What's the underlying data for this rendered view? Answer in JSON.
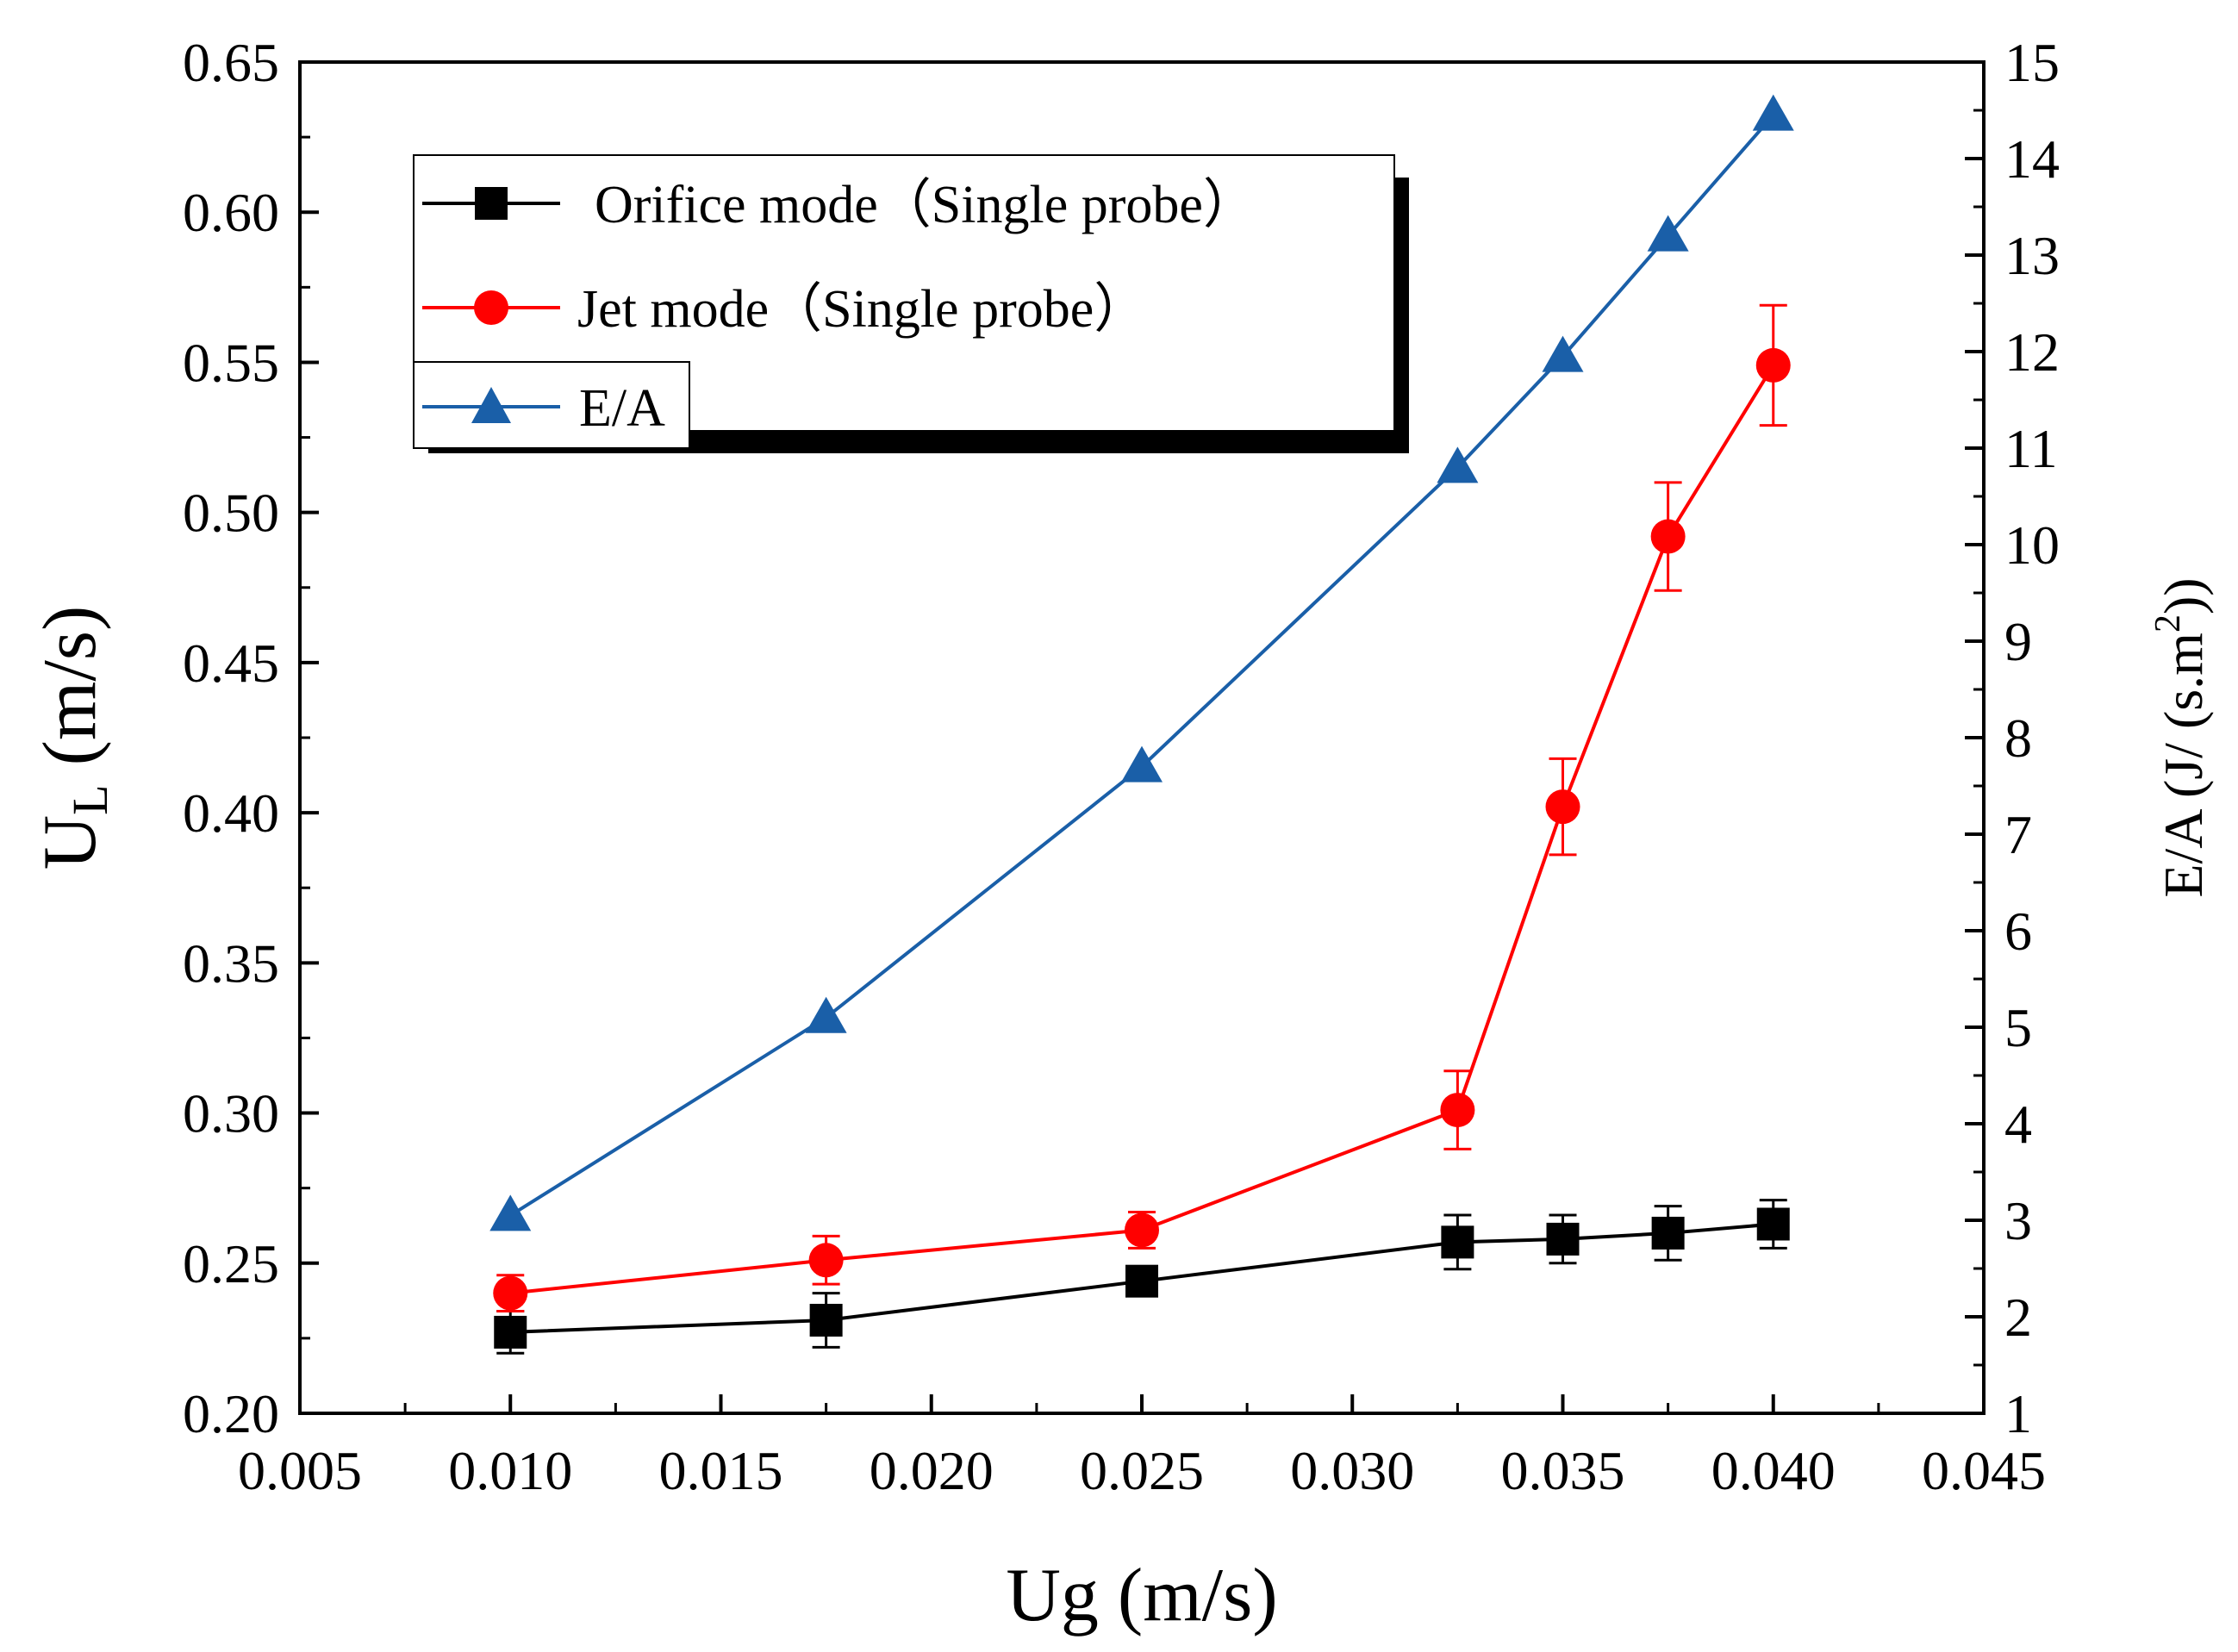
{
  "chart_data": {
    "type": "line",
    "x": [
      0.01,
      0.0175,
      0.025,
      0.0325,
      0.035,
      0.0375,
      0.04
    ],
    "xlim": [
      0.005,
      0.045
    ],
    "ylim": [
      0.2,
      0.65
    ],
    "y2lim": [
      1,
      15
    ],
    "x_ticks": [
      "0.005",
      "0.010",
      "0.015",
      "0.020",
      "0.025",
      "0.030",
      "0.035",
      "0.040",
      "0.045"
    ],
    "y_ticks": [
      "0.20",
      "0.25",
      "0.30",
      "0.35",
      "0.40",
      "0.45",
      "0.50",
      "0.55",
      "0.60",
      "0.65"
    ],
    "y2_ticks": [
      "1",
      "2",
      "3",
      "4",
      "5",
      "6",
      "7",
      "8",
      "9",
      "10",
      "11",
      "12",
      "13",
      "14",
      "15"
    ],
    "xlabel": "Ug (m/s)",
    "ylabel_main": "U",
    "ylabel_sub": "L",
    "ylabel_units": " (m/s)",
    "y2label_prefix": "E/A (J/ (s.m",
    "y2label_sup": "2",
    "y2label_suffix": "))",
    "series": [
      {
        "name": "Orifice mode（Single probe）",
        "axis": "left",
        "marker": "square",
        "color": "#000000",
        "values": [
          0.227,
          0.231,
          0.244,
          0.257,
          0.258,
          0.26,
          0.263
        ],
        "errors": [
          0.007,
          0.009,
          0.003,
          0.009,
          0.008,
          0.009,
          0.008
        ]
      },
      {
        "name": "Jet mode（Single probe）",
        "axis": "left",
        "marker": "circle",
        "color": "#ff0000",
        "values": [
          0.24,
          0.251,
          0.261,
          0.301,
          0.402,
          0.492,
          0.549
        ],
        "errors": [
          0.006,
          0.008,
          0.006,
          0.013,
          0.016,
          0.018,
          0.02
        ]
      },
      {
        "name": "E/A",
        "axis": "right",
        "marker": "triangle",
        "color": "#1a5fa8",
        "values": [
          3.05,
          5.1,
          7.7,
          10.8,
          11.95,
          13.2,
          14.45
        ]
      }
    ]
  }
}
